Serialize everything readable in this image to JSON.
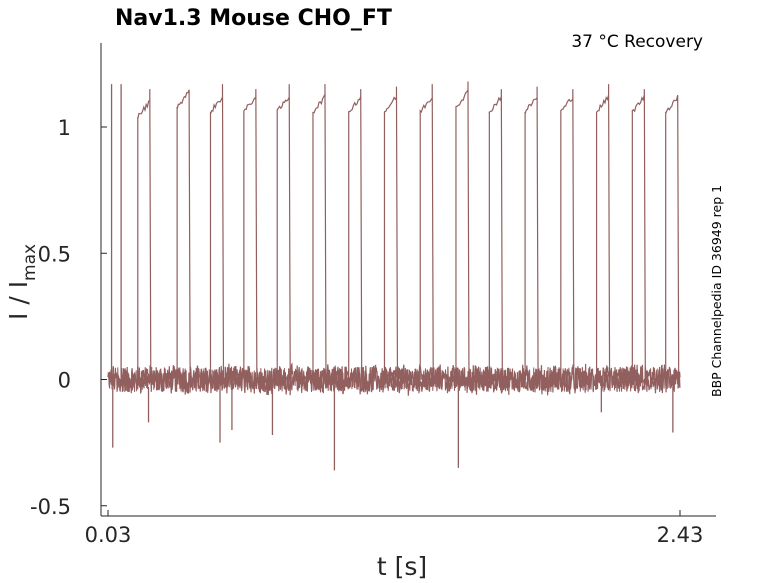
{
  "chart_data": {
    "type": "line",
    "title": "Nav1.3  Mouse  CHO_FT",
    "annotation": "37 °C  Recovery",
    "side_label": "BBP Channelpedia ID 36949 rep 1",
    "xlabel": "t [s]",
    "ylabel_main": "I / I",
    "ylabel_sub": "max",
    "xlim": [
      0.03,
      2.43
    ],
    "ylim": [
      -0.52,
      1.35
    ],
    "x_ticks": [
      0.03,
      2.43
    ],
    "x_tick_labels": [
      "0.03",
      "2.43"
    ],
    "y_ticks": [
      -0.5,
      0,
      0.5,
      1
    ],
    "y_tick_labels": [
      "-0.5",
      "0",
      "0.5",
      "1"
    ],
    "grid": false,
    "series_color": "#925f5f",
    "baseline_noise": 0.05,
    "pulses": [
      {
        "t": 0.045,
        "peak": 1.17,
        "plateau": null
      },
      {
        "t": 0.085,
        "peak": 1.17,
        "plateau": null
      },
      {
        "t": 0.155,
        "peak": 1.15,
        "plateau": 1.08
      },
      {
        "t": 0.32,
        "peak": 1.13,
        "plateau": 1.12
      },
      {
        "t": 0.46,
        "peak": 1.17,
        "plateau": 1.1
      },
      {
        "t": 0.6,
        "peak": 1.15,
        "plateau": 1.1
      },
      {
        "t": 0.74,
        "peak": 1.17,
        "plateau": 1.1
      },
      {
        "t": 0.89,
        "peak": 1.17,
        "plateau": 1.1
      },
      {
        "t": 1.04,
        "peak": 1.15,
        "plateau": 1.1
      },
      {
        "t": 1.19,
        "peak": 1.16,
        "plateau": 1.1
      },
      {
        "t": 1.34,
        "peak": 1.17,
        "plateau": 1.1
      },
      {
        "t": 1.49,
        "peak": 1.18,
        "plateau": 1.12
      },
      {
        "t": 1.63,
        "peak": 1.15,
        "plateau": 1.1
      },
      {
        "t": 1.78,
        "peak": 1.16,
        "plateau": 1.1
      },
      {
        "t": 1.93,
        "peak": 1.15,
        "plateau": 1.1
      },
      {
        "t": 2.08,
        "peak": 1.17,
        "plateau": 1.1
      },
      {
        "t": 2.23,
        "peak": 1.15,
        "plateau": 1.1
      },
      {
        "t": 2.37,
        "peak": 1.12,
        "plateau": 1.1
      }
    ],
    "negative_spikes": [
      {
        "t": 0.05,
        "v": -0.27
      },
      {
        "t": 0.2,
        "v": -0.17
      },
      {
        "t": 0.5,
        "v": -0.25
      },
      {
        "t": 0.55,
        "v": -0.2
      },
      {
        "t": 0.72,
        "v": -0.22
      },
      {
        "t": 0.98,
        "v": -0.36
      },
      {
        "t": 1.5,
        "v": -0.35
      },
      {
        "t": 2.1,
        "v": -0.13
      },
      {
        "t": 2.4,
        "v": -0.21
      }
    ]
  }
}
